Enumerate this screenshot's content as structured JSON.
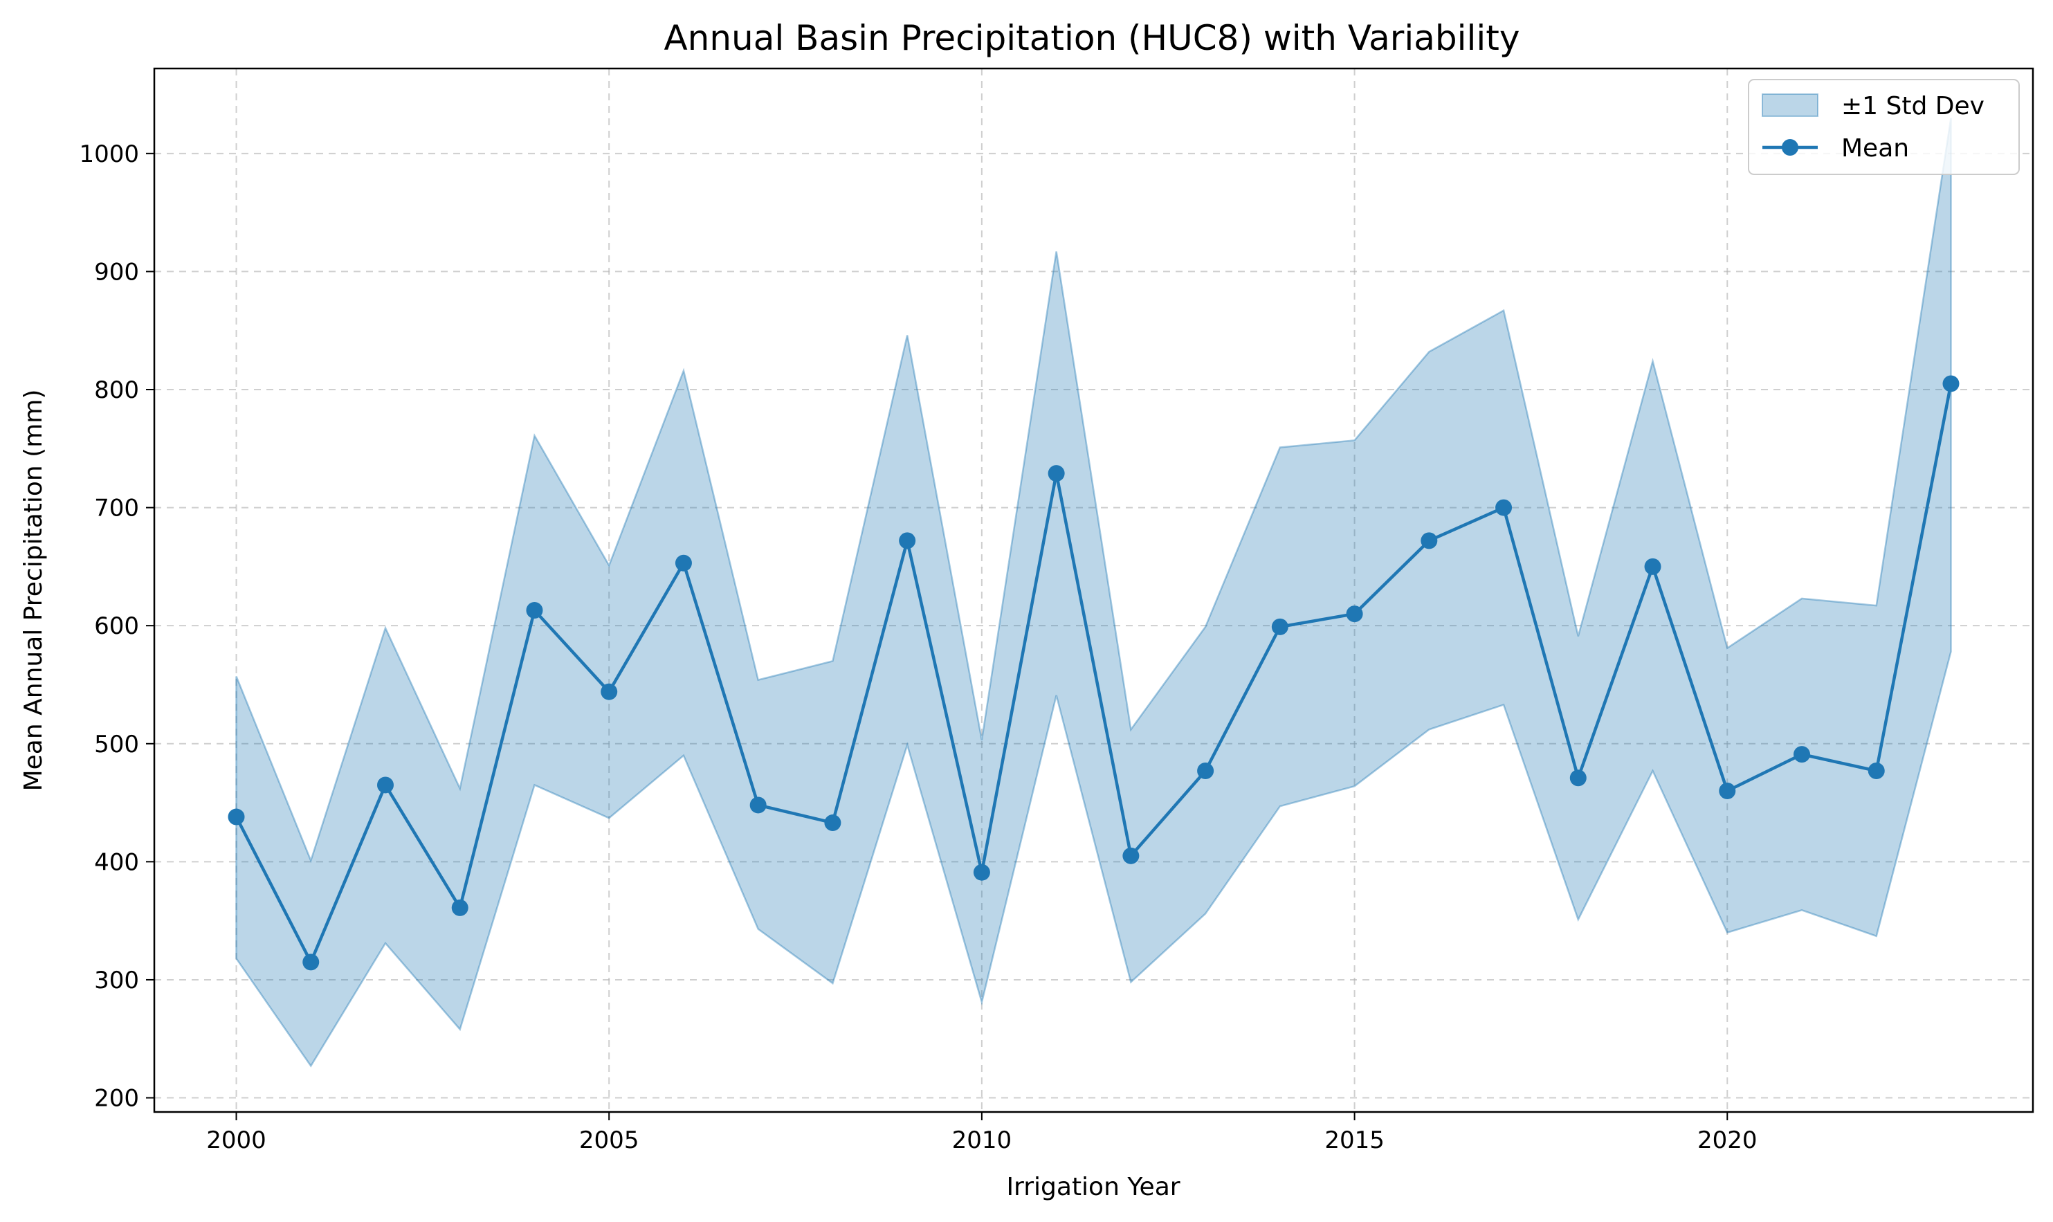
{
  "chart_data": {
    "type": "line",
    "title": "Annual Basin Precipitation (HUC8) with Variability",
    "xlabel": "Irrigation Year",
    "ylabel": "Mean Annual Precipitation (mm)",
    "xlim": [
      1998.9,
      2024.1
    ],
    "ylim": [
      188,
      1072
    ],
    "x_ticks": [
      2000,
      2005,
      2010,
      2015,
      2020
    ],
    "y_ticks": [
      200,
      300,
      400,
      500,
      600,
      700,
      800,
      900,
      1000
    ],
    "grid": true,
    "legend_position": "top-right",
    "x": [
      2000,
      2001,
      2002,
      2003,
      2004,
      2005,
      2006,
      2007,
      2008,
      2009,
      2010,
      2011,
      2012,
      2013,
      2014,
      2015,
      2016,
      2017,
      2018,
      2019,
      2020,
      2021,
      2022,
      2023
    ],
    "series": [
      {
        "name": "Mean",
        "kind": "line-markers",
        "color": "#1f77b4",
        "values": [
          438,
          315,
          465,
          361,
          613,
          544,
          653,
          448,
          433,
          672,
          391,
          729,
          405,
          477,
          599,
          610,
          672,
          700,
          471,
          650,
          460,
          491,
          477,
          805
        ]
      },
      {
        "name": "±1 Std Dev",
        "kind": "band",
        "color": "#1f77b4",
        "opacity": 0.3,
        "upper": [
          557,
          401,
          598,
          462,
          761,
          651,
          816,
          554,
          570,
          846,
          503,
          917,
          512,
          599,
          751,
          757,
          832,
          867,
          591,
          824,
          581,
          623,
          617,
          1030
        ],
        "lower": [
          318,
          227,
          331,
          258,
          465,
          437,
          490,
          343,
          297,
          499,
          281,
          541,
          298,
          356,
          447,
          464,
          512,
          533,
          351,
          477,
          340,
          359,
          337,
          578
        ]
      }
    ]
  }
}
